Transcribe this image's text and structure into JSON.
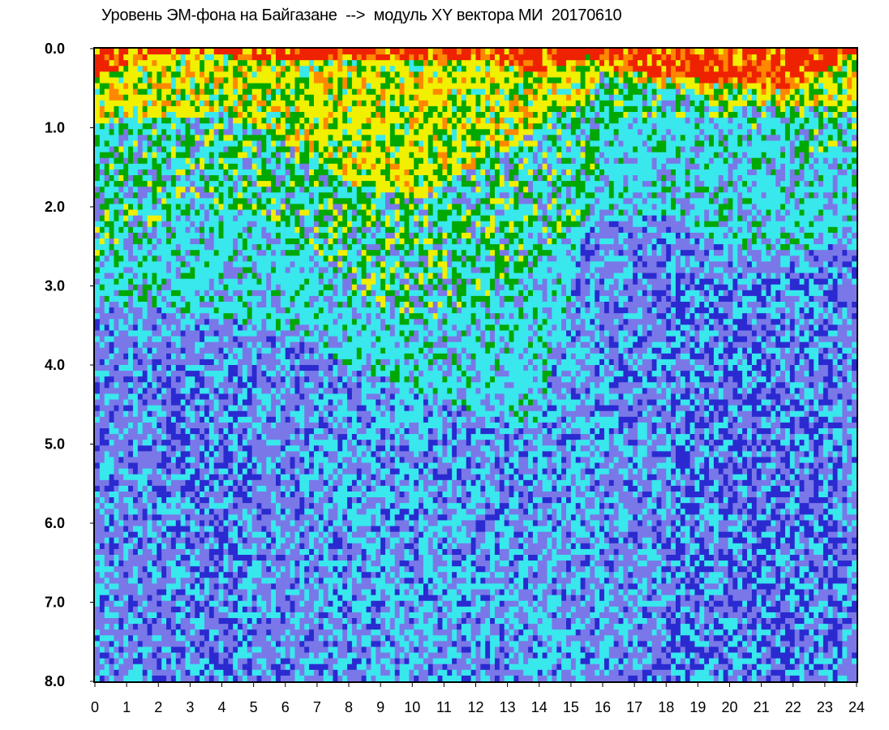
{
  "chart_data": {
    "type": "heatmap",
    "title": "Уровень ЭМ-фона на Байгазане  -->  модуль XY вектора МИ  20170610",
    "xlabel": "",
    "ylabel": "",
    "xlim": [
      0,
      24
    ],
    "ylim": [
      0.0,
      8.0
    ],
    "y_inverted": true,
    "grid": false,
    "legend": "none",
    "x_ticks": [
      "0",
      "1",
      "2",
      "3",
      "4",
      "5",
      "6",
      "7",
      "8",
      "9",
      "10",
      "11",
      "12",
      "13",
      "14",
      "15",
      "16",
      "17",
      "18",
      "19",
      "20",
      "21",
      "22",
      "23",
      "24"
    ],
    "y_ticks": [
      "0.0",
      "1.0",
      "2.0",
      "3.0",
      "4.0",
      "5.0",
      "6.0",
      "7.0",
      "8.0"
    ],
    "colormap": [
      "#2a2ad0",
      "#7a78e8",
      "#38e8ec",
      "#00a800",
      "#f0f000",
      "#ff8800",
      "#ee2200"
    ],
    "band_hour_samples": [
      0,
      2,
      4,
      6,
      8,
      10,
      12,
      14,
      15.5,
      16,
      18,
      20,
      22,
      24
    ],
    "red_band_depth": [
      0.35,
      0.1,
      0.1,
      0.15,
      0.15,
      0.12,
      0.12,
      0.3,
      0.1,
      0.28,
      0.35,
      0.45,
      0.5,
      0.05
    ],
    "yellow_band_depth": [
      0.9,
      0.9,
      0.8,
      1.2,
      1.7,
      1.9,
      1.5,
      1.0,
      0.6,
      0.3,
      0.5,
      0.7,
      0.7,
      0.8
    ],
    "green_band_depth": [
      2.8,
      2.2,
      2.0,
      2.2,
      3.0,
      3.5,
      3.2,
      2.7,
      2.2,
      0.9,
      0.9,
      0.9,
      1.2,
      1.6
    ],
    "cyan_band_depth": [
      3.2,
      3.3,
      3.4,
      3.6,
      4.0,
      4.3,
      4.6,
      4.8,
      2.2,
      2.2,
      2.1,
      2.5,
      2.6,
      2.4
    ]
  }
}
